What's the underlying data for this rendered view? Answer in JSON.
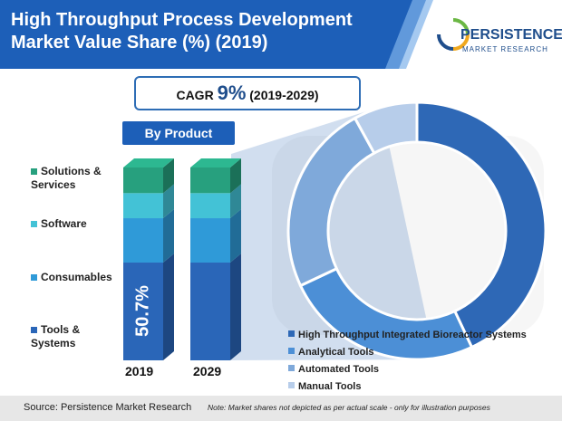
{
  "header": {
    "title_line1": "High Throughput Process Development",
    "title_line2": "Market Value Share (%) (2019)"
  },
  "logo": {
    "name": "PERSISTENCE",
    "sub": "MARKET RESEARCH"
  },
  "cagr": {
    "prefix": "CAGR ",
    "value": "9%",
    "range": " (2019-2029)"
  },
  "product_label": "By Product",
  "colors": {
    "header": "#1d5fb8",
    "tools": "#2a66b8",
    "consumables": "#2f9ad8",
    "software": "#43c2d6",
    "solutions": "#27a07e",
    "donut_integrated": "#2e68b6",
    "donut_analytical": "#4c8fd6",
    "donut_automated": "#7fa9da",
    "donut_manual": "#b7cdea"
  },
  "chart_data": [
    {
      "type": "bar",
      "stacked": true,
      "categories": [
        "2019",
        "2029"
      ],
      "series": [
        {
          "name": "Tools & Systems",
          "values": [
            50.7,
            50.7
          ]
        },
        {
          "name": "Consumables",
          "values": [
            23.0,
            23.0
          ]
        },
        {
          "name": "Software",
          "values": [
            13.0,
            13.0
          ]
        },
        {
          "name": "Solutions & Services",
          "values": [
            13.3,
            13.3
          ]
        }
      ],
      "data_labels": [
        {
          "series": "Tools & Systems",
          "category": "2019",
          "text": "50.7%"
        }
      ],
      "ylim": [
        0,
        100
      ]
    },
    {
      "type": "pie",
      "donut": true,
      "labels": [
        "High Throughput Integrated Bioreactor Systems",
        "Analytical Tools",
        "Automated Tools",
        "Manual Tools"
      ],
      "values": [
        43,
        25,
        24,
        8
      ]
    }
  ],
  "footer": {
    "source": "Source: Persistence Market Research",
    "note": "Note: Market shares not depicted as per actual scale - only for illustration purposes"
  }
}
